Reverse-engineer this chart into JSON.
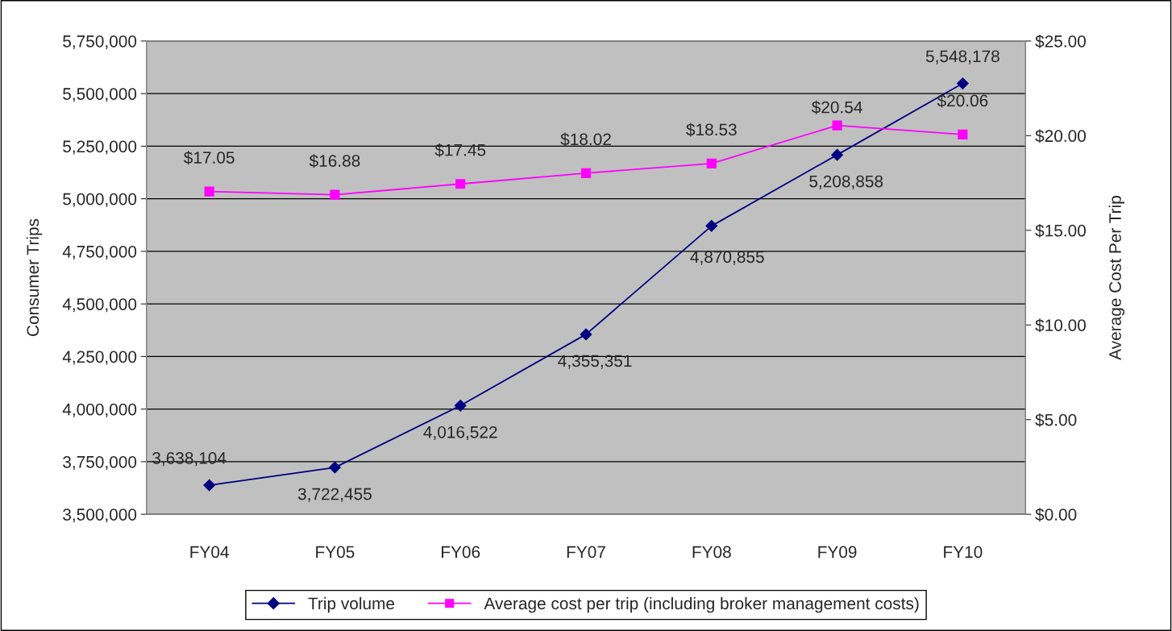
{
  "chart_data": {
    "type": "line",
    "categories": [
      "FY04",
      "FY05",
      "FY06",
      "FY07",
      "FY08",
      "FY09",
      "FY10"
    ],
    "ylabel": "Consumer Trips",
    "y2label": "Average Cost Per Trip",
    "series": [
      {
        "name": "Trip volume",
        "color": "#000080",
        "marker": "diamond",
        "values": [
          3638104,
          3722455,
          4016522,
          4355351,
          4870855,
          5208858,
          5548178
        ],
        "value_labels": [
          "3,638,104",
          "3,722,455",
          "4,016,522",
          "4,355,351",
          "4,870,855",
          "5,208,858",
          "5,548,178"
        ]
      },
      {
        "name": "Average cost per trip (including broker management costs)",
        "color": "#ff00ff",
        "marker": "square",
        "axis": "y2",
        "values": [
          17.05,
          16.88,
          17.45,
          18.02,
          18.53,
          20.54,
          20.06
        ],
        "value_labels": [
          "$17.05",
          "$16.88",
          "$17.45",
          "$18.02",
          "$18.53",
          "$20.54",
          "$20.06"
        ]
      }
    ],
    "ylim": [
      3500000,
      5750000
    ],
    "yticks": [
      {
        "value": 3500000,
        "label": "3,500,000"
      },
      {
        "value": 3750000,
        "label": "3,750,000"
      },
      {
        "value": 4000000,
        "label": "4,000,000"
      },
      {
        "value": 4250000,
        "label": "4,250,000"
      },
      {
        "value": 4500000,
        "label": "4,500,000"
      },
      {
        "value": 4750000,
        "label": "4,750,000"
      },
      {
        "value": 5000000,
        "label": "5,000,000"
      },
      {
        "value": 5250000,
        "label": "5,250,000"
      },
      {
        "value": 5500000,
        "label": "5,500,000"
      },
      {
        "value": 5750000,
        "label": "5,750,000"
      }
    ],
    "y2lim": [
      0,
      25
    ],
    "y2ticks": [
      {
        "value": 0,
        "label": "$0.00"
      },
      {
        "value": 5,
        "label": "$5.00"
      },
      {
        "value": 10,
        "label": "$10.00"
      },
      {
        "value": 15,
        "label": "$15.00"
      },
      {
        "value": 20,
        "label": "$20.00"
      },
      {
        "value": 25,
        "label": "$25.00"
      }
    ],
    "grid": "y",
    "legend": "bottom",
    "line_style": "solid"
  }
}
